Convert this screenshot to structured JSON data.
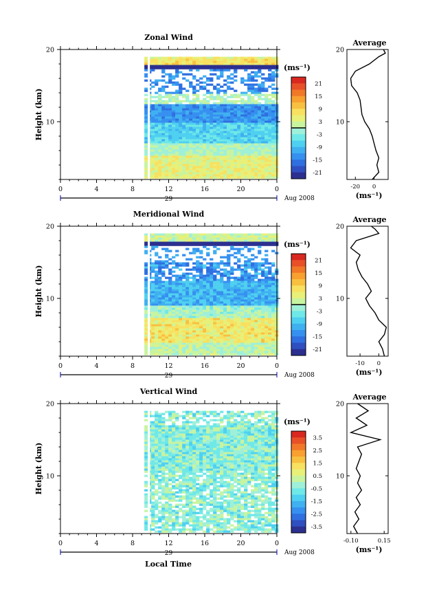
{
  "footer_xlabel": "Local Time",
  "chart_data": [
    {
      "type": "heatmap",
      "title": "Zonal Wind",
      "ylabel": "Height (km)",
      "yticks": [
        10,
        20
      ],
      "ylim": [
        2,
        20
      ],
      "xticks": [
        "0",
        "4",
        "8",
        "12",
        "16",
        "20",
        "0"
      ],
      "xlim": [
        0,
        24
      ],
      "date_day": "29",
      "date_label": "Aug 2008",
      "data_start_hour": 9,
      "colorbar": {
        "unit": "(ms⁻¹)",
        "ticks": [
          "21",
          "15",
          "9",
          "3",
          "-3",
          "-9",
          "-15",
          "-21"
        ],
        "range": [
          -24,
          24
        ],
        "zero_line": true
      },
      "profile": {
        "title": "Average",
        "xticks": [
          "-20",
          "0"
        ],
        "xlim": [
          -29,
          15
        ],
        "unit": "(ms⁻¹)",
        "yticks": [
          10,
          20
        ],
        "points": [
          [
            -2,
            2
          ],
          [
            5,
            3
          ],
          [
            3,
            4
          ],
          [
            5,
            5
          ],
          [
            2,
            6
          ],
          [
            0,
            7
          ],
          [
            -2,
            8
          ],
          [
            -5,
            9
          ],
          [
            -10,
            10
          ],
          [
            -13,
            11
          ],
          [
            -14,
            12
          ],
          [
            -15,
            13
          ],
          [
            -18,
            14
          ],
          [
            -24,
            15
          ],
          [
            -25,
            16
          ],
          [
            -20,
            17
          ],
          [
            -5,
            18
          ],
          [
            5,
            19
          ],
          [
            12,
            19.5
          ],
          [
            10,
            20
          ]
        ]
      }
    },
    {
      "type": "heatmap",
      "title": "Meridional Wind",
      "ylabel": "Height (km)",
      "yticks": [
        10,
        20
      ],
      "ylim": [
        2,
        20
      ],
      "xticks": [
        "0",
        "4",
        "8",
        "12",
        "16",
        "20",
        "0"
      ],
      "xlim": [
        0,
        24
      ],
      "date_day": "29",
      "date_label": "Aug 2008",
      "data_start_hour": 9,
      "colorbar": {
        "unit": "(ms⁻¹)",
        "ticks": [
          "21",
          "15",
          "9",
          "3",
          "-3",
          "-9",
          "-15",
          "-21"
        ],
        "range": [
          -24,
          24
        ],
        "zero_line": true
      },
      "profile": {
        "title": "Average",
        "xticks": [
          "-10",
          "0"
        ],
        "xlim": [
          -17,
          5
        ],
        "unit": "(ms⁻¹)",
        "yticks": [
          10,
          20
        ],
        "points": [
          [
            3,
            2
          ],
          [
            2,
            3
          ],
          [
            0,
            4
          ],
          [
            3,
            5
          ],
          [
            4,
            6
          ],
          [
            0,
            7
          ],
          [
            -2,
            8
          ],
          [
            -5,
            9
          ],
          [
            -7,
            10
          ],
          [
            -4,
            11
          ],
          [
            -6,
            12
          ],
          [
            -9,
            13
          ],
          [
            -11,
            14
          ],
          [
            -12,
            15
          ],
          [
            -10,
            16
          ],
          [
            -15,
            17
          ],
          [
            -12,
            18
          ],
          [
            0,
            19
          ],
          [
            -2,
            19.6
          ],
          [
            -4,
            20
          ]
        ]
      }
    },
    {
      "type": "heatmap",
      "title": "Vertical Wind",
      "ylabel": "Height (km)",
      "yticks": [
        10,
        20
      ],
      "ylim": [
        2,
        20
      ],
      "xticks": [
        "0",
        "4",
        "8",
        "12",
        "16",
        "20",
        "0"
      ],
      "xlim": [
        0,
        24
      ],
      "date_day": "29",
      "date_label": "Aug 2008",
      "data_start_hour": 9,
      "colorbar": {
        "unit": "(ms⁻¹)",
        "ticks": [
          "3.5",
          "2.5",
          "1.5",
          "0.5",
          "-0.5",
          "-1.5",
          "-2.5",
          "-3.5"
        ],
        "range": [
          -4,
          4
        ],
        "zero_line": false
      },
      "profile": {
        "title": "Average",
        "xticks": [
          "-0.10",
          "0.15"
        ],
        "xlim": [
          -0.13,
          0.18
        ],
        "unit": "(ms⁻¹)",
        "yticks": [
          10,
          20
        ],
        "points": [
          [
            -0.05,
            2
          ],
          [
            -0.08,
            3
          ],
          [
            -0.04,
            4
          ],
          [
            -0.07,
            5
          ],
          [
            -0.03,
            6
          ],
          [
            -0.06,
            7
          ],
          [
            -0.02,
            8
          ],
          [
            -0.05,
            9
          ],
          [
            -0.03,
            10
          ],
          [
            -0.06,
            11
          ],
          [
            -0.04,
            12
          ],
          [
            -0.02,
            13
          ],
          [
            -0.05,
            14
          ],
          [
            0.12,
            15
          ],
          [
            -0.1,
            16
          ],
          [
            0.02,
            17
          ],
          [
            -0.06,
            18
          ],
          [
            0.03,
            19
          ],
          [
            -0.05,
            20
          ]
        ]
      }
    }
  ]
}
